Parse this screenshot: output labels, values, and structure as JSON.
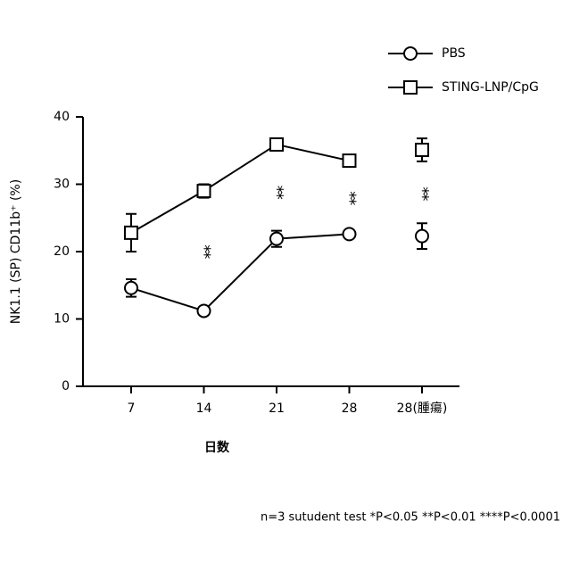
{
  "chart_data": {
    "type": "line",
    "y_label": "NK1.1 (SP) CD11b⁺ (%)",
    "x_label": "日数",
    "note": "n=3 sutudent test *P<0.05 **P<0.01 ****P<0.0001",
    "categories": [
      "7",
      "14",
      "21",
      "28",
      "28(腫瘍)"
    ],
    "joined": [
      true,
      true,
      true,
      false
    ],
    "series": [
      {
        "name": "PBS",
        "marker": "circle",
        "color": "#000000",
        "values": [
          14.6,
          11.2,
          21.9,
          22.6,
          22.3
        ],
        "errors": [
          1.3,
          0.3,
          1.2,
          0.5,
          1.9
        ]
      },
      {
        "name": "STING-LNP/CpG",
        "marker": "square",
        "color": "#000000",
        "values": [
          22.8,
          29.0,
          35.9,
          33.5,
          35.1
        ],
        "errors": [
          2.8,
          1.0,
          0.6,
          0.7,
          1.7
        ]
      }
    ],
    "significance": [
      null,
      "**",
      "**",
      "**",
      "**"
    ],
    "ylim": [
      0,
      40
    ],
    "yticks": [
      0,
      10,
      20,
      30,
      40
    ],
    "grid": false,
    "legend": "top-right"
  }
}
